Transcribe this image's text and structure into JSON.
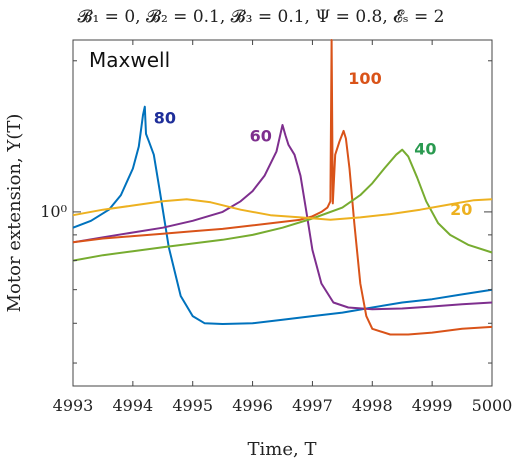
{
  "chart_data": {
    "type": "line",
    "title": "𝓑₁ = 0,  𝓑₂ = 0.1,  𝓑₃ = 0.1,  Ψ = 0.8,  𝓔ₛ = 2",
    "panel_label": "Maxwell",
    "xlabel": "Time, T",
    "ylabel": "Motor extension, Y(T)",
    "xlim": [
      4993,
      5000
    ],
    "ylim": [
      0.45,
      2.2
    ],
    "yscale": "log",
    "xticks": [
      "4993",
      "4994",
      "4995",
      "4996",
      "4997",
      "4998",
      "4999",
      "5000"
    ],
    "xtick_values": [
      4993,
      4994,
      4995,
      4996,
      4997,
      4998,
      4999,
      5000
    ],
    "yticks": [
      {
        "value": 1,
        "label": "10⁰"
      }
    ],
    "grid": false,
    "legend": "inline labels",
    "series": [
      {
        "name": "80",
        "color": "#0072bd",
        "label_color": "#1f2f9a",
        "label_at": [
          4994.35,
          1.5
        ],
        "points": [
          [
            4993,
            0.93
          ],
          [
            4993.3,
            0.96
          ],
          [
            4993.6,
            1.01
          ],
          [
            4993.8,
            1.08
          ],
          [
            4994.0,
            1.22
          ],
          [
            4994.1,
            1.35
          ],
          [
            4994.17,
            1.56
          ],
          [
            4994.2,
            1.62
          ],
          [
            4994.22,
            1.43
          ],
          [
            4994.27,
            1.38
          ],
          [
            4994.35,
            1.3
          ],
          [
            4994.45,
            1.1
          ],
          [
            4994.6,
            0.85
          ],
          [
            4994.8,
            0.68
          ],
          [
            4995.0,
            0.62
          ],
          [
            4995.2,
            0.6
          ],
          [
            4995.5,
            0.598
          ],
          [
            4996.0,
            0.6
          ],
          [
            4996.5,
            0.61
          ],
          [
            4997.0,
            0.62
          ],
          [
            4997.5,
            0.63
          ],
          [
            4998.0,
            0.645
          ],
          [
            4998.5,
            0.66
          ],
          [
            4999.0,
            0.67
          ],
          [
            4999.5,
            0.685
          ],
          [
            5000,
            0.7
          ]
        ]
      },
      {
        "name": "60",
        "color": "#7e2f8e",
        "label_color": "#7e2f8e",
        "label_at": [
          4995.95,
          1.38
        ],
        "points": [
          [
            4993,
            0.87
          ],
          [
            4993.5,
            0.89
          ],
          [
            4994.0,
            0.91
          ],
          [
            4994.5,
            0.93
          ],
          [
            4995.0,
            0.96
          ],
          [
            4995.5,
            1.0
          ],
          [
            4995.8,
            1.05
          ],
          [
            4996.0,
            1.1
          ],
          [
            4996.2,
            1.18
          ],
          [
            4996.4,
            1.32
          ],
          [
            4996.5,
            1.49
          ],
          [
            4996.55,
            1.42
          ],
          [
            4996.6,
            1.36
          ],
          [
            4996.7,
            1.3
          ],
          [
            4996.8,
            1.18
          ],
          [
            4996.9,
            1.0
          ],
          [
            4997.0,
            0.84
          ],
          [
            4997.15,
            0.72
          ],
          [
            4997.35,
            0.66
          ],
          [
            4997.6,
            0.645
          ],
          [
            4998.0,
            0.64
          ],
          [
            4998.5,
            0.642
          ],
          [
            4999.0,
            0.648
          ],
          [
            4999.5,
            0.655
          ],
          [
            5000,
            0.66
          ]
        ]
      },
      {
        "name": "100",
        "color": "#d95319",
        "label_color": "#d95319",
        "label_at": [
          4997.6,
          1.8
        ],
        "points": [
          [
            4993,
            0.87
          ],
          [
            4993.5,
            0.885
          ],
          [
            4994.0,
            0.895
          ],
          [
            4994.5,
            0.905
          ],
          [
            4995.0,
            0.915
          ],
          [
            4995.5,
            0.925
          ],
          [
            4996.0,
            0.94
          ],
          [
            4996.5,
            0.955
          ],
          [
            4996.8,
            0.965
          ],
          [
            4997.0,
            0.98
          ],
          [
            4997.15,
            1.0
          ],
          [
            4997.25,
            1.02
          ],
          [
            4997.3,
            1.05
          ],
          [
            4997.32,
            2.2
          ],
          [
            4997.34,
            1.04
          ],
          [
            4997.38,
            1.3
          ],
          [
            4997.45,
            1.38
          ],
          [
            4997.52,
            1.45
          ],
          [
            4997.56,
            1.4
          ],
          [
            4997.62,
            1.22
          ],
          [
            4997.7,
            0.95
          ],
          [
            4997.8,
            0.72
          ],
          [
            4997.9,
            0.62
          ],
          [
            4998.0,
            0.585
          ],
          [
            4998.3,
            0.57
          ],
          [
            4998.6,
            0.57
          ],
          [
            4999.0,
            0.575
          ],
          [
            4999.5,
            0.585
          ],
          [
            5000,
            0.59
          ]
        ]
      },
      {
        "name": "40",
        "color": "#77ac30",
        "label_color": "#2a9a50",
        "label_at": [
          4998.7,
          1.3
        ],
        "points": [
          [
            4993,
            0.8
          ],
          [
            4993.5,
            0.82
          ],
          [
            4994.0,
            0.835
          ],
          [
            4994.5,
            0.85
          ],
          [
            4995.0,
            0.865
          ],
          [
            4995.5,
            0.88
          ],
          [
            4996.0,
            0.9
          ],
          [
            4996.5,
            0.93
          ],
          [
            4997.0,
            0.97
          ],
          [
            4997.5,
            1.02
          ],
          [
            4997.8,
            1.08
          ],
          [
            4998.0,
            1.14
          ],
          [
            4998.2,
            1.22
          ],
          [
            4998.4,
            1.3
          ],
          [
            4998.5,
            1.33
          ],
          [
            4998.6,
            1.29
          ],
          [
            4998.75,
            1.17
          ],
          [
            4998.9,
            1.05
          ],
          [
            4999.1,
            0.95
          ],
          [
            4999.3,
            0.9
          ],
          [
            4999.6,
            0.86
          ],
          [
            5000,
            0.83
          ]
        ]
      },
      {
        "name": "20",
        "color": "#edb120",
        "label_color": "#edb120",
        "label_at": [
          4999.3,
          0.985
        ],
        "points": [
          [
            4993,
            0.985
          ],
          [
            4993.5,
            1.01
          ],
          [
            4994.0,
            1.03
          ],
          [
            4994.5,
            1.05
          ],
          [
            4994.9,
            1.06
          ],
          [
            4995.3,
            1.045
          ],
          [
            4995.8,
            1.01
          ],
          [
            4996.3,
            0.985
          ],
          [
            4996.8,
            0.975
          ],
          [
            4997.3,
            0.965
          ],
          [
            4997.8,
            0.975
          ],
          [
            4998.3,
            0.99
          ],
          [
            4998.8,
            1.01
          ],
          [
            4999.3,
            1.035
          ],
          [
            4999.7,
            1.055
          ],
          [
            5000,
            1.06
          ]
        ]
      }
    ]
  }
}
